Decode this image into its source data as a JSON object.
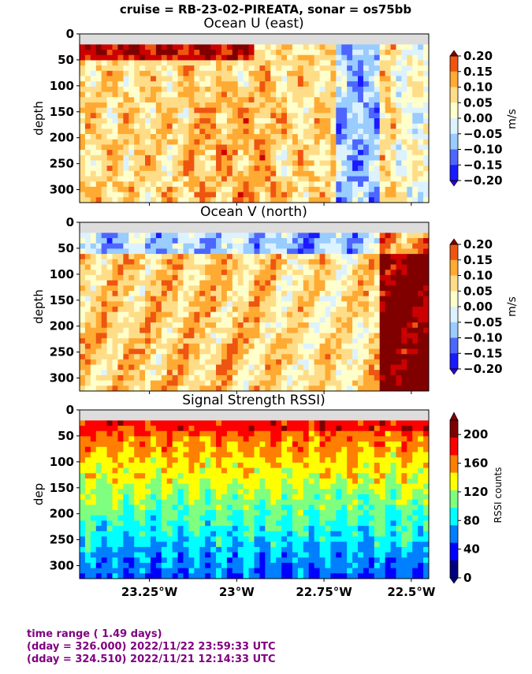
{
  "suptitle": "cruise = RB-23-02-PIREATA,  sonar = os75bb",
  "colors": {
    "diverging": [
      "#3300cc",
      "#1a1aff",
      "#4d66ff",
      "#99ccff",
      "#ddf2ff",
      "#ffffcc",
      "#ffdd88",
      "#ffaa33",
      "#ee5511",
      "#cc0000",
      "#800000"
    ],
    "jet": [
      "#00007f",
      "#0000ff",
      "#007fff",
      "#00ffff",
      "#7fff7f",
      "#ffff00",
      "#ff7f00",
      "#ff0000",
      "#7f0000"
    ],
    "missing": "#dddddd",
    "footer": "#800080"
  },
  "chart_data": [
    {
      "type": "heatmap",
      "title": "Ocean U (east)",
      "ylabel": "depth",
      "y_ticks": [
        "0",
        "50",
        "100",
        "150",
        "200",
        "250",
        "300"
      ],
      "ylim": [
        325,
        0
      ],
      "xlim": [
        -23.45,
        -22.45
      ],
      "colorbar": {
        "label": "m/s",
        "ticks": [
          "0.20",
          "0.15",
          "0.10",
          "0.05",
          "0.00",
          "−0.05",
          "−0.10",
          "−0.15",
          "−0.20"
        ],
        "range": [
          -0.2,
          0.2
        ]
      }
    },
    {
      "type": "heatmap",
      "title": "Ocean V (north)",
      "ylabel": "depth",
      "y_ticks": [
        "0",
        "50",
        "100",
        "150",
        "200",
        "250",
        "300"
      ],
      "ylim": [
        325,
        0
      ],
      "xlim": [
        -23.45,
        -22.45
      ],
      "colorbar": {
        "label": "m/s",
        "ticks": [
          "0.20",
          "0.15",
          "0.10",
          "0.05",
          "0.00",
          "−0.05",
          "−0.10",
          "−0.15",
          "−0.20"
        ],
        "range": [
          -0.2,
          0.2
        ]
      }
    },
    {
      "type": "heatmap",
      "title": "Signal Strength RSSI)",
      "ylabel": "dep",
      "y_ticks": [
        "0",
        "50",
        "100",
        "150",
        "200",
        "250",
        "300"
      ],
      "ylim": [
        325,
        0
      ],
      "xlim": [
        -23.45,
        -22.45
      ],
      "x_ticks": [
        {
          "label": "23.25°W",
          "value": -23.25
        },
        {
          "label": "23°W",
          "value": -23.0
        },
        {
          "label": "22.75°W",
          "value": -22.75
        },
        {
          "label": "22.5°W",
          "value": -22.5
        }
      ],
      "colorbar": {
        "label": "RSSI counts",
        "ticks": [
          "200",
          "160",
          "120",
          "80",
          "40",
          "0"
        ],
        "range": [
          0,
          220
        ]
      }
    }
  ],
  "footer": {
    "line1": "time range ( 1.49 days)",
    "line2": "(dday = 326.000) 2022/11/22 23:59:33 UTC",
    "line3": "(dday = 324.510) 2022/11/21 12:14:33 UTC"
  }
}
